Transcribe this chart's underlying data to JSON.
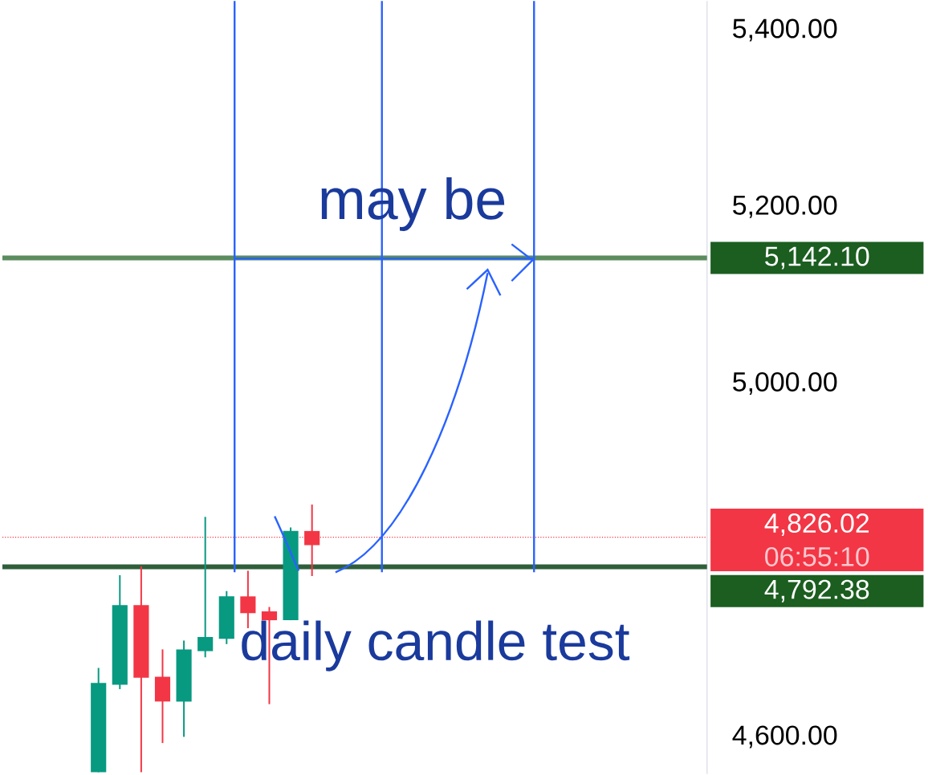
{
  "chart_data": {
    "type": "candlestick",
    "categories": [
      null,
      null,
      null,
      null,
      null,
      null,
      null,
      null,
      null,
      null,
      null,
      null,
      null,
      null,
      null,
      null,
      null,
      null,
      null,
      null,
      null,
      null,
      null,
      null,
      null,
      null,
      null,
      null,
      null,
      null,
      null,
      null,
      null
    ],
    "ohlc": [
      null,
      null,
      null,
      null,
      [
        4560,
        4678,
        4560,
        4661
      ],
      [
        4659,
        4783,
        4654,
        4749
      ],
      [
        4749,
        4793,
        4560,
        4667
      ],
      [
        4668,
        4699,
        4593,
        4640
      ],
      [
        4640,
        4709,
        4600,
        4699
      ],
      [
        4697,
        4849,
        4690,
        4713
      ],
      [
        4711,
        4765,
        4705,
        4759
      ],
      [
        4759,
        4788,
        4723,
        4740
      ],
      [
        4742,
        4747,
        4637,
        4732
      ],
      [
        4732,
        4837,
        4732,
        4833
      ],
      [
        4833,
        4863,
        4782,
        4817
      ],
      null,
      null,
      null,
      null,
      null,
      null,
      null,
      null,
      null,
      null,
      null,
      null,
      null,
      null,
      null,
      null,
      null,
      null
    ],
    "ylim": [
      4558,
      5433
    ],
    "yticks": [
      {
        "value": 4600,
        "label": "4,600.00"
      },
      {
        "value": 5000,
        "label": "5,000.00"
      },
      {
        "value": 5200,
        "label": "5,200.00"
      },
      {
        "value": 5400,
        "label": "5,400.00"
      }
    ],
    "tick_labels": "y",
    "grid": false,
    "ref_lines": [
      {
        "axis": "y",
        "value": 5142.1,
        "label": "5,142.10",
        "color": "#5b8c5f"
      },
      {
        "axis": "y",
        "value": 4826.02,
        "label": "4,826.02",
        "color": "#f23645",
        "line_style": "dotted"
      },
      {
        "axis": "y",
        "value": 4792.38,
        "label": "4,792.38",
        "color": "#2f5f3a"
      }
    ],
    "annotations": [
      "may be",
      "daily candle test",
      "06:55:10"
    ]
  }
}
